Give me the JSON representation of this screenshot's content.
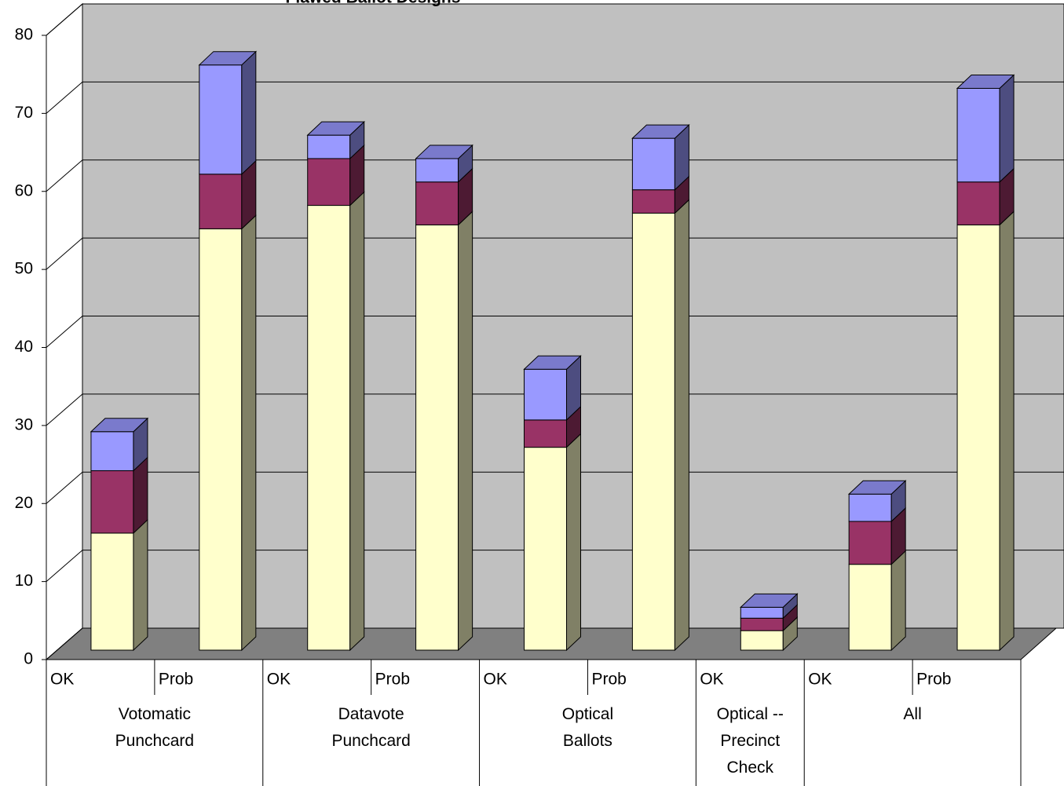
{
  "chart_data": {
    "type": "stacked-bar-3d",
    "title": "Flawed Ballot Designs",
    "groups": [
      {
        "name": "Votomatic Punchcard",
        "categories": [
          "OK",
          "Prob"
        ]
      },
      {
        "name": "Datavote Punchcard",
        "categories": [
          "OK",
          "Prob"
        ]
      },
      {
        "name": "Optical Ballots",
        "categories": [
          "OK",
          "Prob"
        ]
      },
      {
        "name": "Optical -- Precinct Check",
        "categories": [
          "OK"
        ]
      },
      {
        "name": "All",
        "categories": [
          "OK",
          "Prob"
        ]
      }
    ],
    "series": [
      {
        "color": "#ffffcc",
        "values": [
          15,
          54,
          57,
          54.5,
          26,
          56,
          2.5,
          11,
          54.5
        ]
      },
      {
        "color": "#993366",
        "values": [
          8,
          7,
          6,
          5.5,
          3.5,
          3,
          1.6,
          5.5,
          5.5
        ]
      },
      {
        "color": "#9999ff",
        "values": [
          5,
          14,
          3,
          3,
          6.5,
          6.6,
          1.4,
          3.5,
          12
        ]
      }
    ],
    "ylim": [
      0,
      80
    ],
    "yticks": [
      0,
      10,
      20,
      30,
      40,
      50,
      60,
      70,
      80
    ],
    "grid": true
  }
}
